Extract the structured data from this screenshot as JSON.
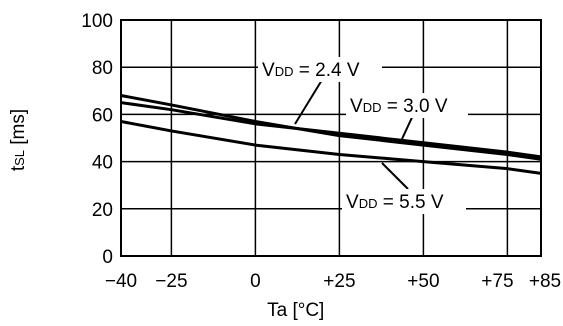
{
  "chart_data": {
    "type": "line",
    "xlabel": "Ta [°C]",
    "ylabel_main": "t",
    "ylabel_sub": "SL",
    "ylabel_unit": " [ms]",
    "xlim": [
      -40,
      85
    ],
    "ylim": [
      0,
      100
    ],
    "x_ticks": [
      -40,
      -25,
      0,
      25,
      50,
      75,
      85
    ],
    "x_tick_labels": [
      "−40",
      "−25",
      "0",
      "+25",
      "+50",
      "+75",
      "+85"
    ],
    "y_ticks": [
      0,
      20,
      40,
      60,
      80,
      100
    ],
    "y_tick_labels": [
      "0",
      "20",
      "40",
      "60",
      "80",
      "100"
    ],
    "grid": true,
    "series": [
      {
        "name": "VDD = 2.4 V",
        "label_main": "V",
        "label_sub": "DD",
        "label_rest": " = 2.4 V",
        "color": "#000000",
        "x": [
          -40,
          -25,
          0,
          25,
          50,
          75,
          85
        ],
        "y": [
          68,
          64,
          57,
          51,
          47,
          43,
          41
        ]
      },
      {
        "name": "VDD = 3.0 V",
        "label_main": "V",
        "label_sub": "DD",
        "label_rest": " = 3.0 V",
        "color": "#000000",
        "x": [
          -40,
          -25,
          0,
          25,
          50,
          75,
          85
        ],
        "y": [
          65,
          62,
          56,
          52,
          48,
          44,
          42
        ]
      },
      {
        "name": "VDD = 5.5 V",
        "label_main": "V",
        "label_sub": "DD",
        "label_rest": " = 5.5 V",
        "color": "#000000",
        "x": [
          -40,
          -25,
          0,
          25,
          50,
          75,
          85
        ],
        "y": [
          57,
          53,
          47,
          43,
          40,
          37,
          35
        ]
      }
    ]
  }
}
